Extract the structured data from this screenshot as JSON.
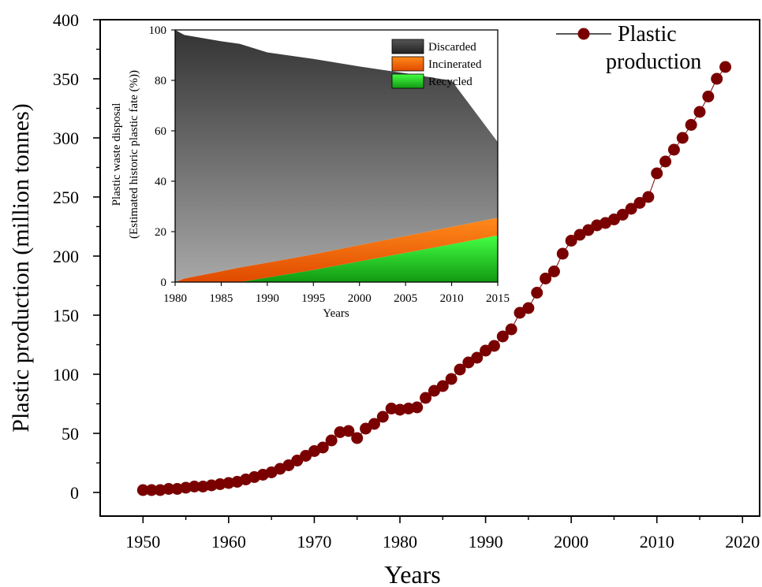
{
  "chart_data": [
    {
      "id": "main",
      "type": "scatter",
      "xlabel": "Years",
      "ylabel": "Plastic production (million tonnes)",
      "xlim": [
        1945,
        2022
      ],
      "ylim": [
        -20,
        400
      ],
      "xticks": [
        "1950",
        "1960",
        "1970",
        "1980",
        "1990",
        "2000",
        "2010",
        "2020"
      ],
      "yticks": [
        "0",
        "50",
        "100",
        "150",
        "200",
        "250",
        "300",
        "350",
        "400"
      ],
      "grid": false,
      "legend_position": "top-right",
      "series": [
        {
          "name": "Plastic production",
          "color": "#7a0000",
          "x": [
            1950,
            1951,
            1952,
            1953,
            1954,
            1955,
            1956,
            1957,
            1958,
            1959,
            1960,
            1961,
            1962,
            1963,
            1964,
            1965,
            1966,
            1967,
            1968,
            1969,
            1970,
            1971,
            1972,
            1973,
            1974,
            1975,
            1976,
            1977,
            1978,
            1979,
            1980,
            1981,
            1982,
            1983,
            1984,
            1985,
            1986,
            1987,
            1988,
            1989,
            1990,
            1991,
            1992,
            1993,
            1994,
            1995,
            1996,
            1997,
            1998,
            1999,
            2000,
            2001,
            2002,
            2003,
            2004,
            2005,
            2006,
            2007,
            2008,
            2009,
            2010,
            2011,
            2012,
            2013,
            2014,
            2015,
            2016,
            2017,
            2018
          ],
          "y": [
            2,
            2,
            2,
            3,
            3,
            4,
            5,
            5,
            6,
            7,
            8,
            9,
            11,
            13,
            15,
            17,
            20,
            23,
            27,
            31,
            35,
            38,
            44,
            51,
            52,
            46,
            54,
            58,
            64,
            71,
            70,
            71,
            72,
            80,
            86,
            90,
            96,
            104,
            110,
            114,
            120,
            124,
            132,
            138,
            152,
            156,
            169,
            181,
            187,
            202,
            213,
            218,
            222,
            226,
            228,
            231,
            235,
            240,
            245,
            250,
            270,
            280,
            290,
            300,
            311,
            322,
            335,
            350,
            360
          ]
        }
      ]
    },
    {
      "id": "inset",
      "type": "area",
      "xlabel": "Years",
      "ylabel": "Plastic waste disposal (Estimated historic plastic fate (%))",
      "ylabel_lines": [
        "Plastic waste disposal",
        "(Estimated historic plastic fate (%))"
      ],
      "xlim": [
        1980,
        2015
      ],
      "ylim": [
        0,
        100
      ],
      "xticks": [
        "1980",
        "1985",
        "1990",
        "1995",
        "2000",
        "2005",
        "2010",
        "2015"
      ],
      "yticks": [
        "0",
        "20",
        "40",
        "60",
        "80",
        "100"
      ],
      "stacked": true,
      "grid": false,
      "legend_position": "top-right",
      "x": [
        1980,
        1981,
        1985,
        1987,
        1990,
        1995,
        2000,
        2005,
        2010,
        2015
      ],
      "series": [
        {
          "name": "Recycled",
          "color": "#22cc22",
          "values": [
            0,
            0,
            0,
            0,
            1.8,
            4.8,
            8.2,
            11.6,
            15.0,
            18.5
          ]
        },
        {
          "name": "Incinerated",
          "color": "#ff6a00",
          "values": [
            0,
            1.4,
            4.3,
            5.8,
            5.9,
            6.2,
            6.5,
            6.7,
            6.9,
            7.0
          ]
        },
        {
          "name": "Discarded",
          "color": "#444444",
          "values": [
            100,
            96.6,
            91.2,
            88.7,
            83.4,
            77.5,
            70.8,
            64.5,
            58.0,
            30.0
          ]
        }
      ]
    }
  ]
}
